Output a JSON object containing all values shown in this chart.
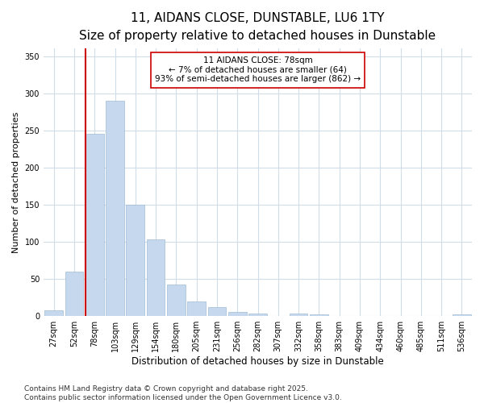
{
  "title": "11, AIDANS CLOSE, DUNSTABLE, LU6 1TY",
  "subtitle": "Size of property relative to detached houses in Dunstable",
  "xlabel": "Distribution of detached houses by size in Dunstable",
  "ylabel": "Number of detached properties",
  "categories": [
    "27sqm",
    "52sqm",
    "78sqm",
    "103sqm",
    "129sqm",
    "154sqm",
    "180sqm",
    "205sqm",
    "231sqm",
    "256sqm",
    "282sqm",
    "307sqm",
    "332sqm",
    "358sqm",
    "383sqm",
    "409sqm",
    "434sqm",
    "460sqm",
    "485sqm",
    "511sqm",
    "536sqm"
  ],
  "values": [
    8,
    60,
    245,
    290,
    150,
    103,
    42,
    20,
    12,
    6,
    3,
    0,
    3,
    2,
    0,
    0,
    0,
    0,
    0,
    0,
    2
  ],
  "bar_color": "#c5d8ed",
  "bar_edge_color": "#a0bcd8",
  "highlight_bar_index": 2,
  "highlight_line_color": "#cc0000",
  "annotation_text": "11 AIDANS CLOSE: 78sqm\n← 7% of detached houses are smaller (64)\n93% of semi-detached houses are larger (862) →",
  "annotation_box_facecolor": "#ffffff",
  "annotation_box_edgecolor": "#cc0000",
  "ylim": [
    0,
    360
  ],
  "yticks": [
    0,
    50,
    100,
    150,
    200,
    250,
    300,
    350
  ],
  "background_color": "#ffffff",
  "plot_background_color": "#ffffff",
  "grid_color": "#d0dce8",
  "footer_text": "Contains HM Land Registry data © Crown copyright and database right 2025.\nContains public sector information licensed under the Open Government Licence v3.0.",
  "title_fontsize": 11,
  "subtitle_fontsize": 9.5,
  "xlabel_fontsize": 8.5,
  "ylabel_fontsize": 8,
  "tick_fontsize": 7,
  "annotation_fontsize": 7.5,
  "footer_fontsize": 6.5
}
